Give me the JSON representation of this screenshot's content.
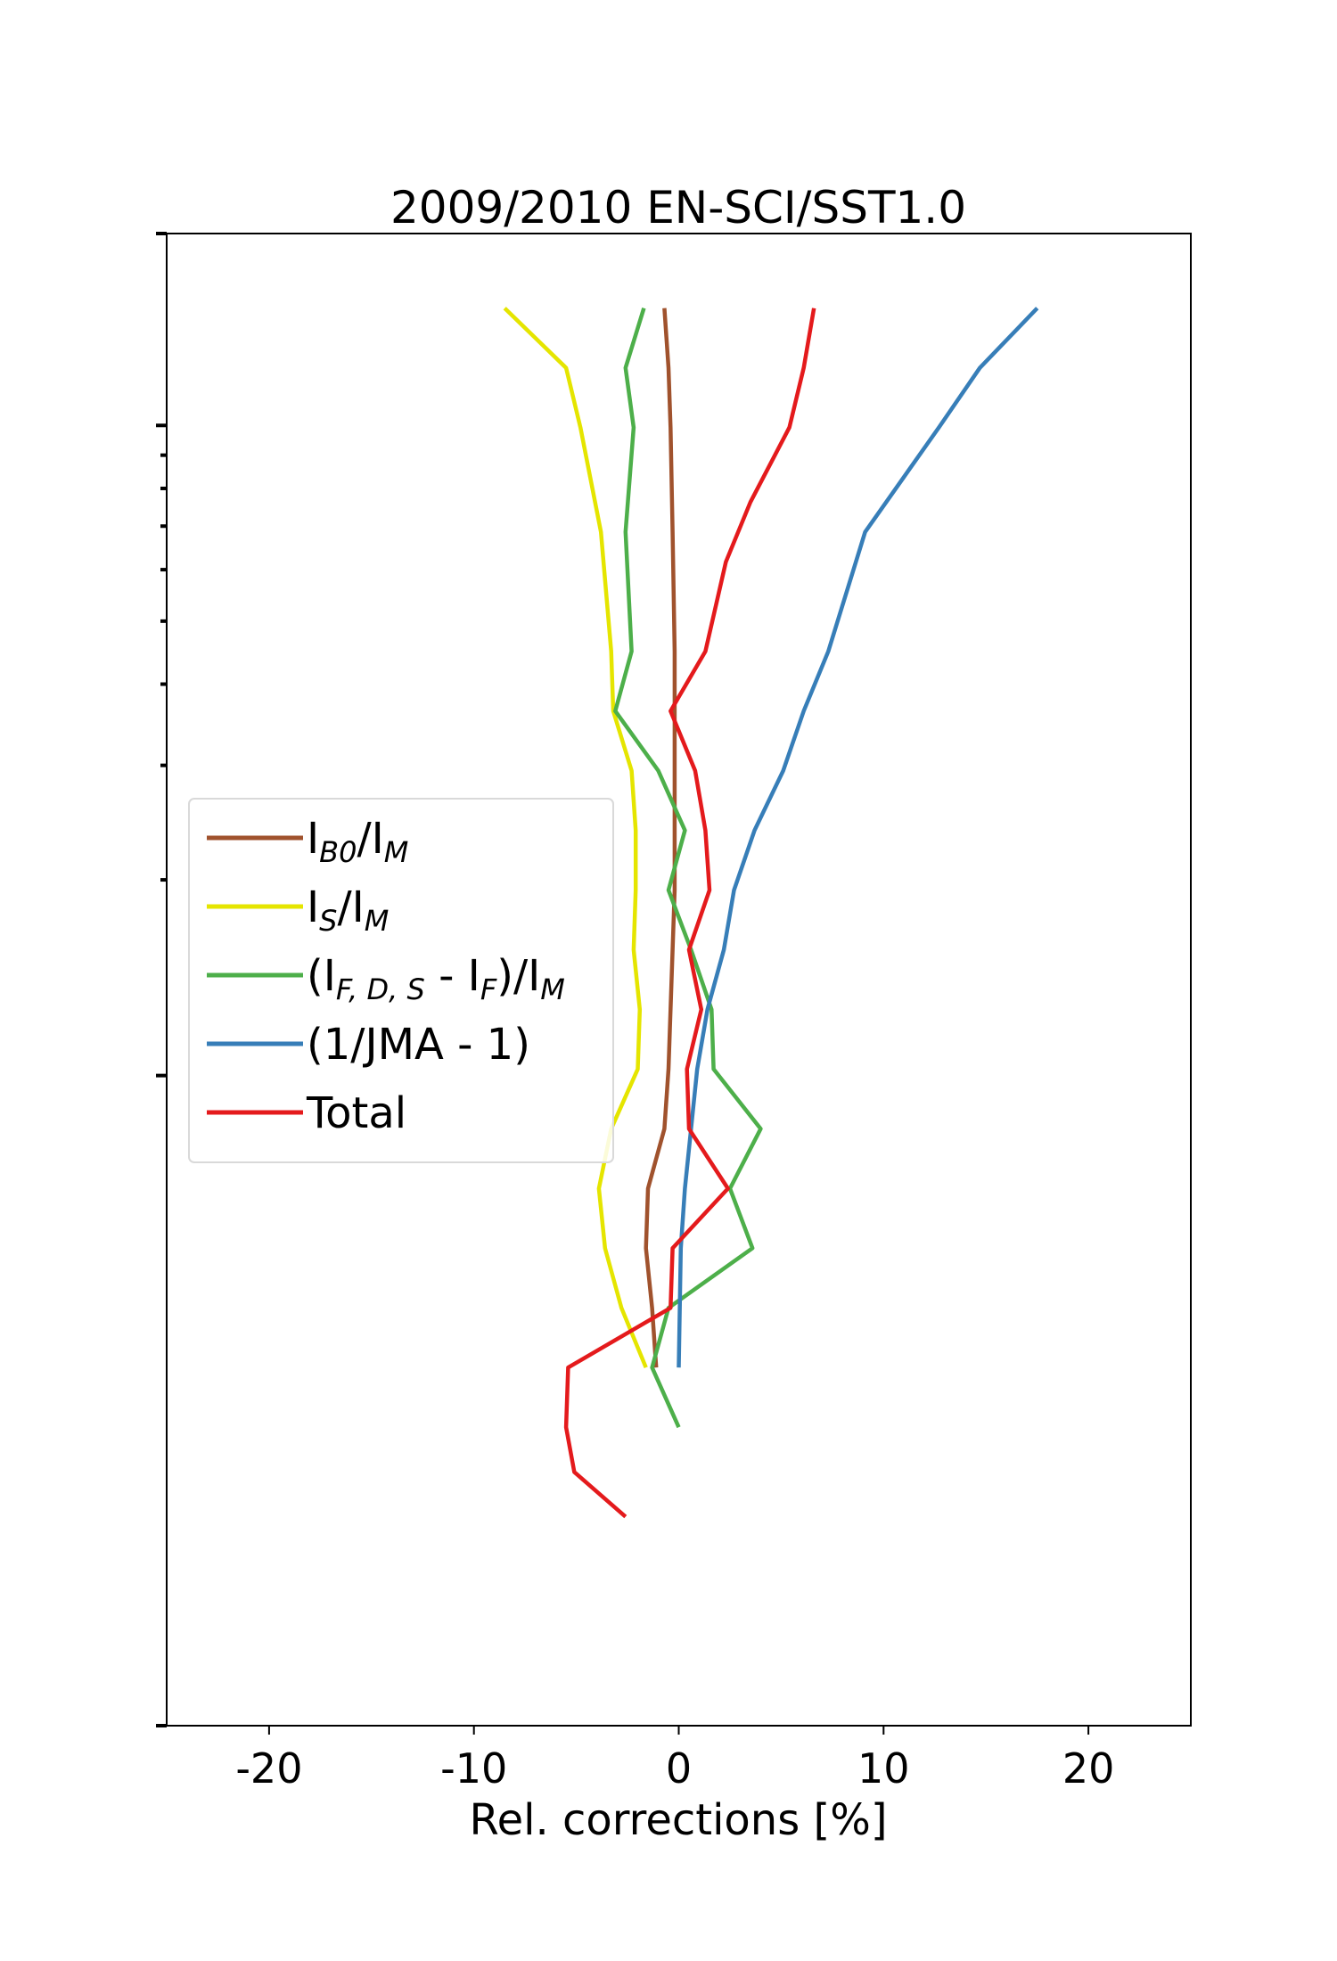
{
  "chart_data": {
    "type": "line",
    "title": "2009/2010 EN-SCI/SST1.0",
    "xlabel": "Rel. corrections [%]",
    "ylabel": "",
    "xlim": [
      -25,
      25
    ],
    "ylim": [
      0,
      1
    ],
    "xticks": [
      -20,
      -10,
      0,
      10,
      20
    ],
    "xtick_labels": [
      "-20",
      "-10",
      "0",
      "10",
      "20"
    ],
    "yscale": "log",
    "grid": false,
    "legend_position": "center-left",
    "series": [
      {
        "name": "IB0/IM",
        "legend": {
          "main": "I",
          "sub": "B0",
          "rest": "/I",
          "sub2": "M"
        },
        "color": "#a0522d",
        "x": [
          -0.7,
          -0.5,
          -0.4,
          -0.3,
          -0.2,
          -0.2,
          -0.2,
          -0.2,
          -0.2,
          -0.3,
          -0.4,
          -0.5,
          -0.7,
          -1.5,
          -1.6,
          -1.3,
          -1.1
        ],
        "y": [
          0.95,
          0.91,
          0.87,
          0.8,
          0.72,
          0.68,
          0.64,
          0.6,
          0.56,
          0.52,
          0.48,
          0.44,
          0.4,
          0.36,
          0.32,
          0.28,
          0.24
        ]
      },
      {
        "name": "IS/IM",
        "legend": {
          "main": "I",
          "sub": "S",
          "rest": "/I",
          "sub2": "M"
        },
        "color": "#e5e500",
        "x": [
          -8.5,
          -5.5,
          -4.8,
          -3.8,
          -3.3,
          -3.2,
          -2.3,
          -2.1,
          -2.1,
          -2.2,
          -1.9,
          -2.0,
          -3.3,
          -3.9,
          -3.6,
          -2.8,
          -1.6
        ],
        "y": [
          0.95,
          0.91,
          0.87,
          0.8,
          0.72,
          0.68,
          0.64,
          0.6,
          0.56,
          0.52,
          0.48,
          0.44,
          0.4,
          0.36,
          0.32,
          0.28,
          0.24
        ]
      },
      {
        "name": "(IF,D,S - IF)/IM",
        "legend": {
          "main": "(I",
          "sub": "F, D, S",
          "rest": " - I",
          "sub2": "F",
          "rest2": ")/I",
          "sub3": "M"
        },
        "color": "#4daf4a",
        "x": [
          -1.7,
          -2.6,
          -2.2,
          -2.6,
          -2.3,
          -3.1,
          -1.0,
          0.3,
          -0.5,
          0.6,
          1.6,
          1.7,
          4.0,
          2.5,
          3.6,
          -0.5,
          -1.3,
          0.0
        ],
        "y": [
          0.95,
          0.91,
          0.87,
          0.8,
          0.72,
          0.68,
          0.64,
          0.6,
          0.56,
          0.52,
          0.48,
          0.44,
          0.4,
          0.36,
          0.32,
          0.28,
          0.24,
          0.2
        ]
      },
      {
        "name": "(1/JMA - 1)",
        "legend": {
          "main": "(1/JMA - 1)"
        },
        "color": "#377eb8",
        "x": [
          17.5,
          14.7,
          12.7,
          9.1,
          7.3,
          6.1,
          5.1,
          3.7,
          2.7,
          2.2,
          1.4,
          0.9,
          0.6,
          0.3,
          0.1,
          0.0
        ],
        "y": [
          0.95,
          0.91,
          0.87,
          0.8,
          0.72,
          0.68,
          0.64,
          0.6,
          0.56,
          0.52,
          0.48,
          0.44,
          0.4,
          0.36,
          0.32,
          0.24
        ]
      },
      {
        "name": "Total",
        "legend": {
          "main": "Total"
        },
        "color": "#e41a1c",
        "x": [
          6.6,
          6.1,
          5.4,
          3.5,
          2.3,
          1.3,
          -0.4,
          0.8,
          1.3,
          1.5,
          0.5,
          1.1,
          0.4,
          0.5,
          2.4,
          -0.3,
          -0.4,
          -5.4,
          -5.5,
          -5.1,
          -2.6
        ],
        "y": [
          0.95,
          0.91,
          0.87,
          0.82,
          0.78,
          0.72,
          0.68,
          0.64,
          0.6,
          0.56,
          0.52,
          0.48,
          0.44,
          0.4,
          0.36,
          0.32,
          0.28,
          0.24,
          0.2,
          0.17,
          0.14
        ]
      }
    ]
  }
}
